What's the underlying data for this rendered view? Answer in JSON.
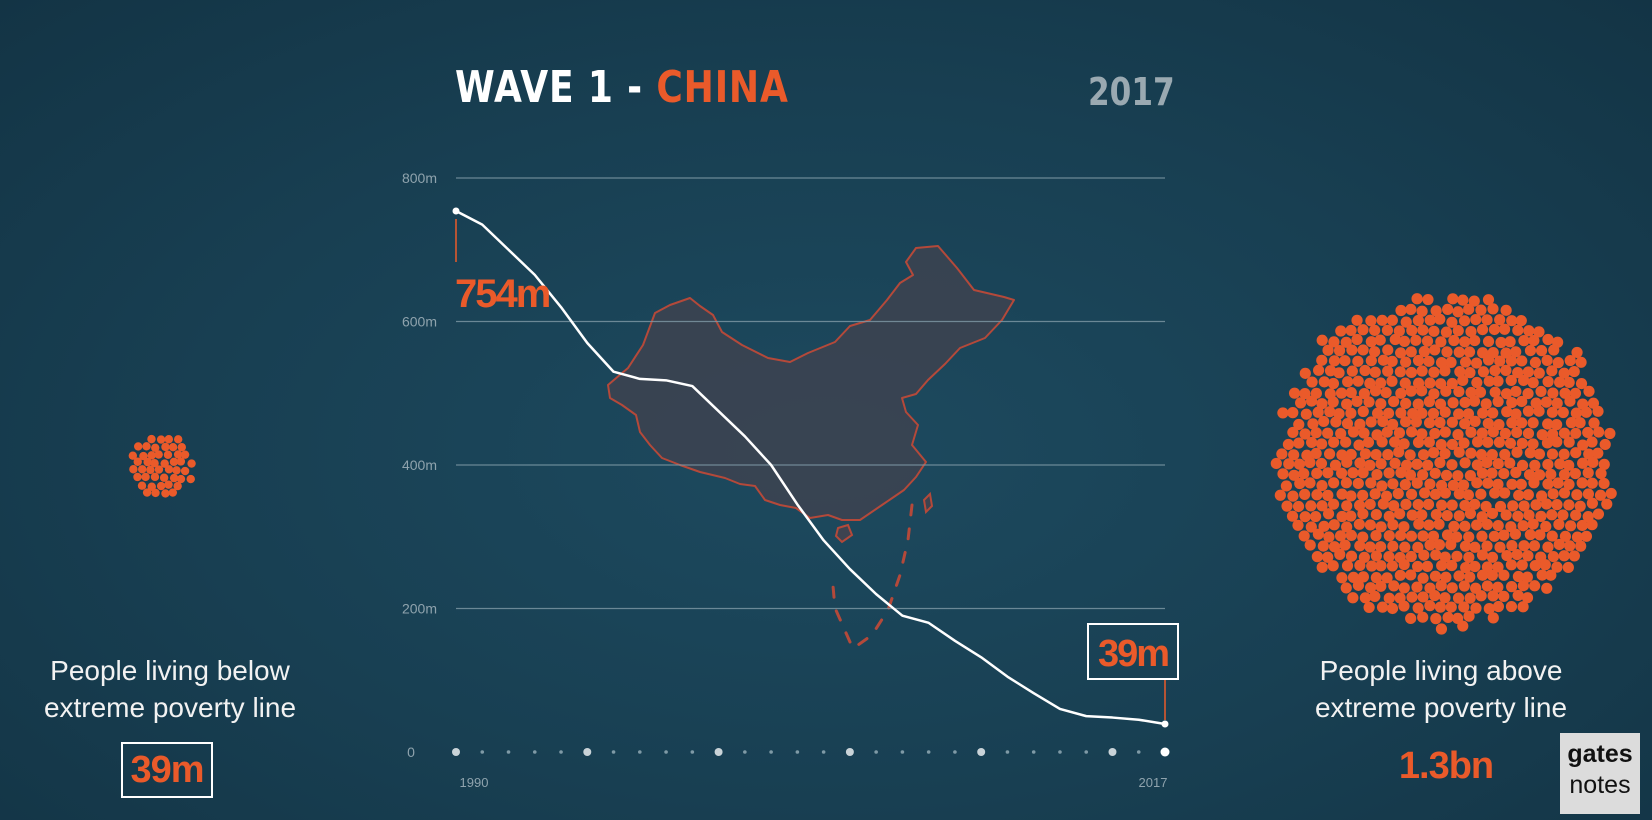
{
  "header": {
    "title_prefix": "WAVE 1 - ",
    "title_country": "CHINA",
    "year": "2017"
  },
  "chart_data": {
    "type": "line",
    "x": [
      1990,
      1991,
      1992,
      1993,
      1994,
      1995,
      1996,
      1997,
      1998,
      1999,
      2000,
      2001,
      2002,
      2003,
      2004,
      2005,
      2006,
      2007,
      2008,
      2009,
      2010,
      2011,
      2012,
      2013,
      2014,
      2015,
      2016,
      2017
    ],
    "series": [
      {
        "values": [
          754,
          735,
          700,
          665,
          620,
          570,
          530,
          520,
          518,
          510,
          475,
          440,
          400,
          345,
          295,
          255,
          220,
          190,
          180,
          155,
          132,
          105,
          82,
          60,
          50,
          48,
          45,
          39
        ]
      }
    ],
    "y_ticks": [
      "800m",
      "600m",
      "400m",
      "200m",
      "0"
    ],
    "y_tick_values": [
      800,
      600,
      400,
      200,
      0
    ],
    "ylim": [
      0,
      800
    ],
    "x_tick_labels": [
      "1990",
      "2017"
    ],
    "start_label": "754m",
    "end_label": "39m",
    "grid": true
  },
  "left_panel": {
    "caption_line1": "People living below",
    "caption_line2": "extreme poverty line",
    "value": "39m"
  },
  "right_panel": {
    "caption_line1": "People living above",
    "caption_line2": "extreme poverty line",
    "value": "1.3bn"
  },
  "logo": {
    "line1": "gates",
    "line2": "notes"
  },
  "colors": {
    "background": "#183f52",
    "accent": "#ea5a2a",
    "line": "#ffffff",
    "grid": "#7f9aa6",
    "map_fill": "#3d4350"
  }
}
